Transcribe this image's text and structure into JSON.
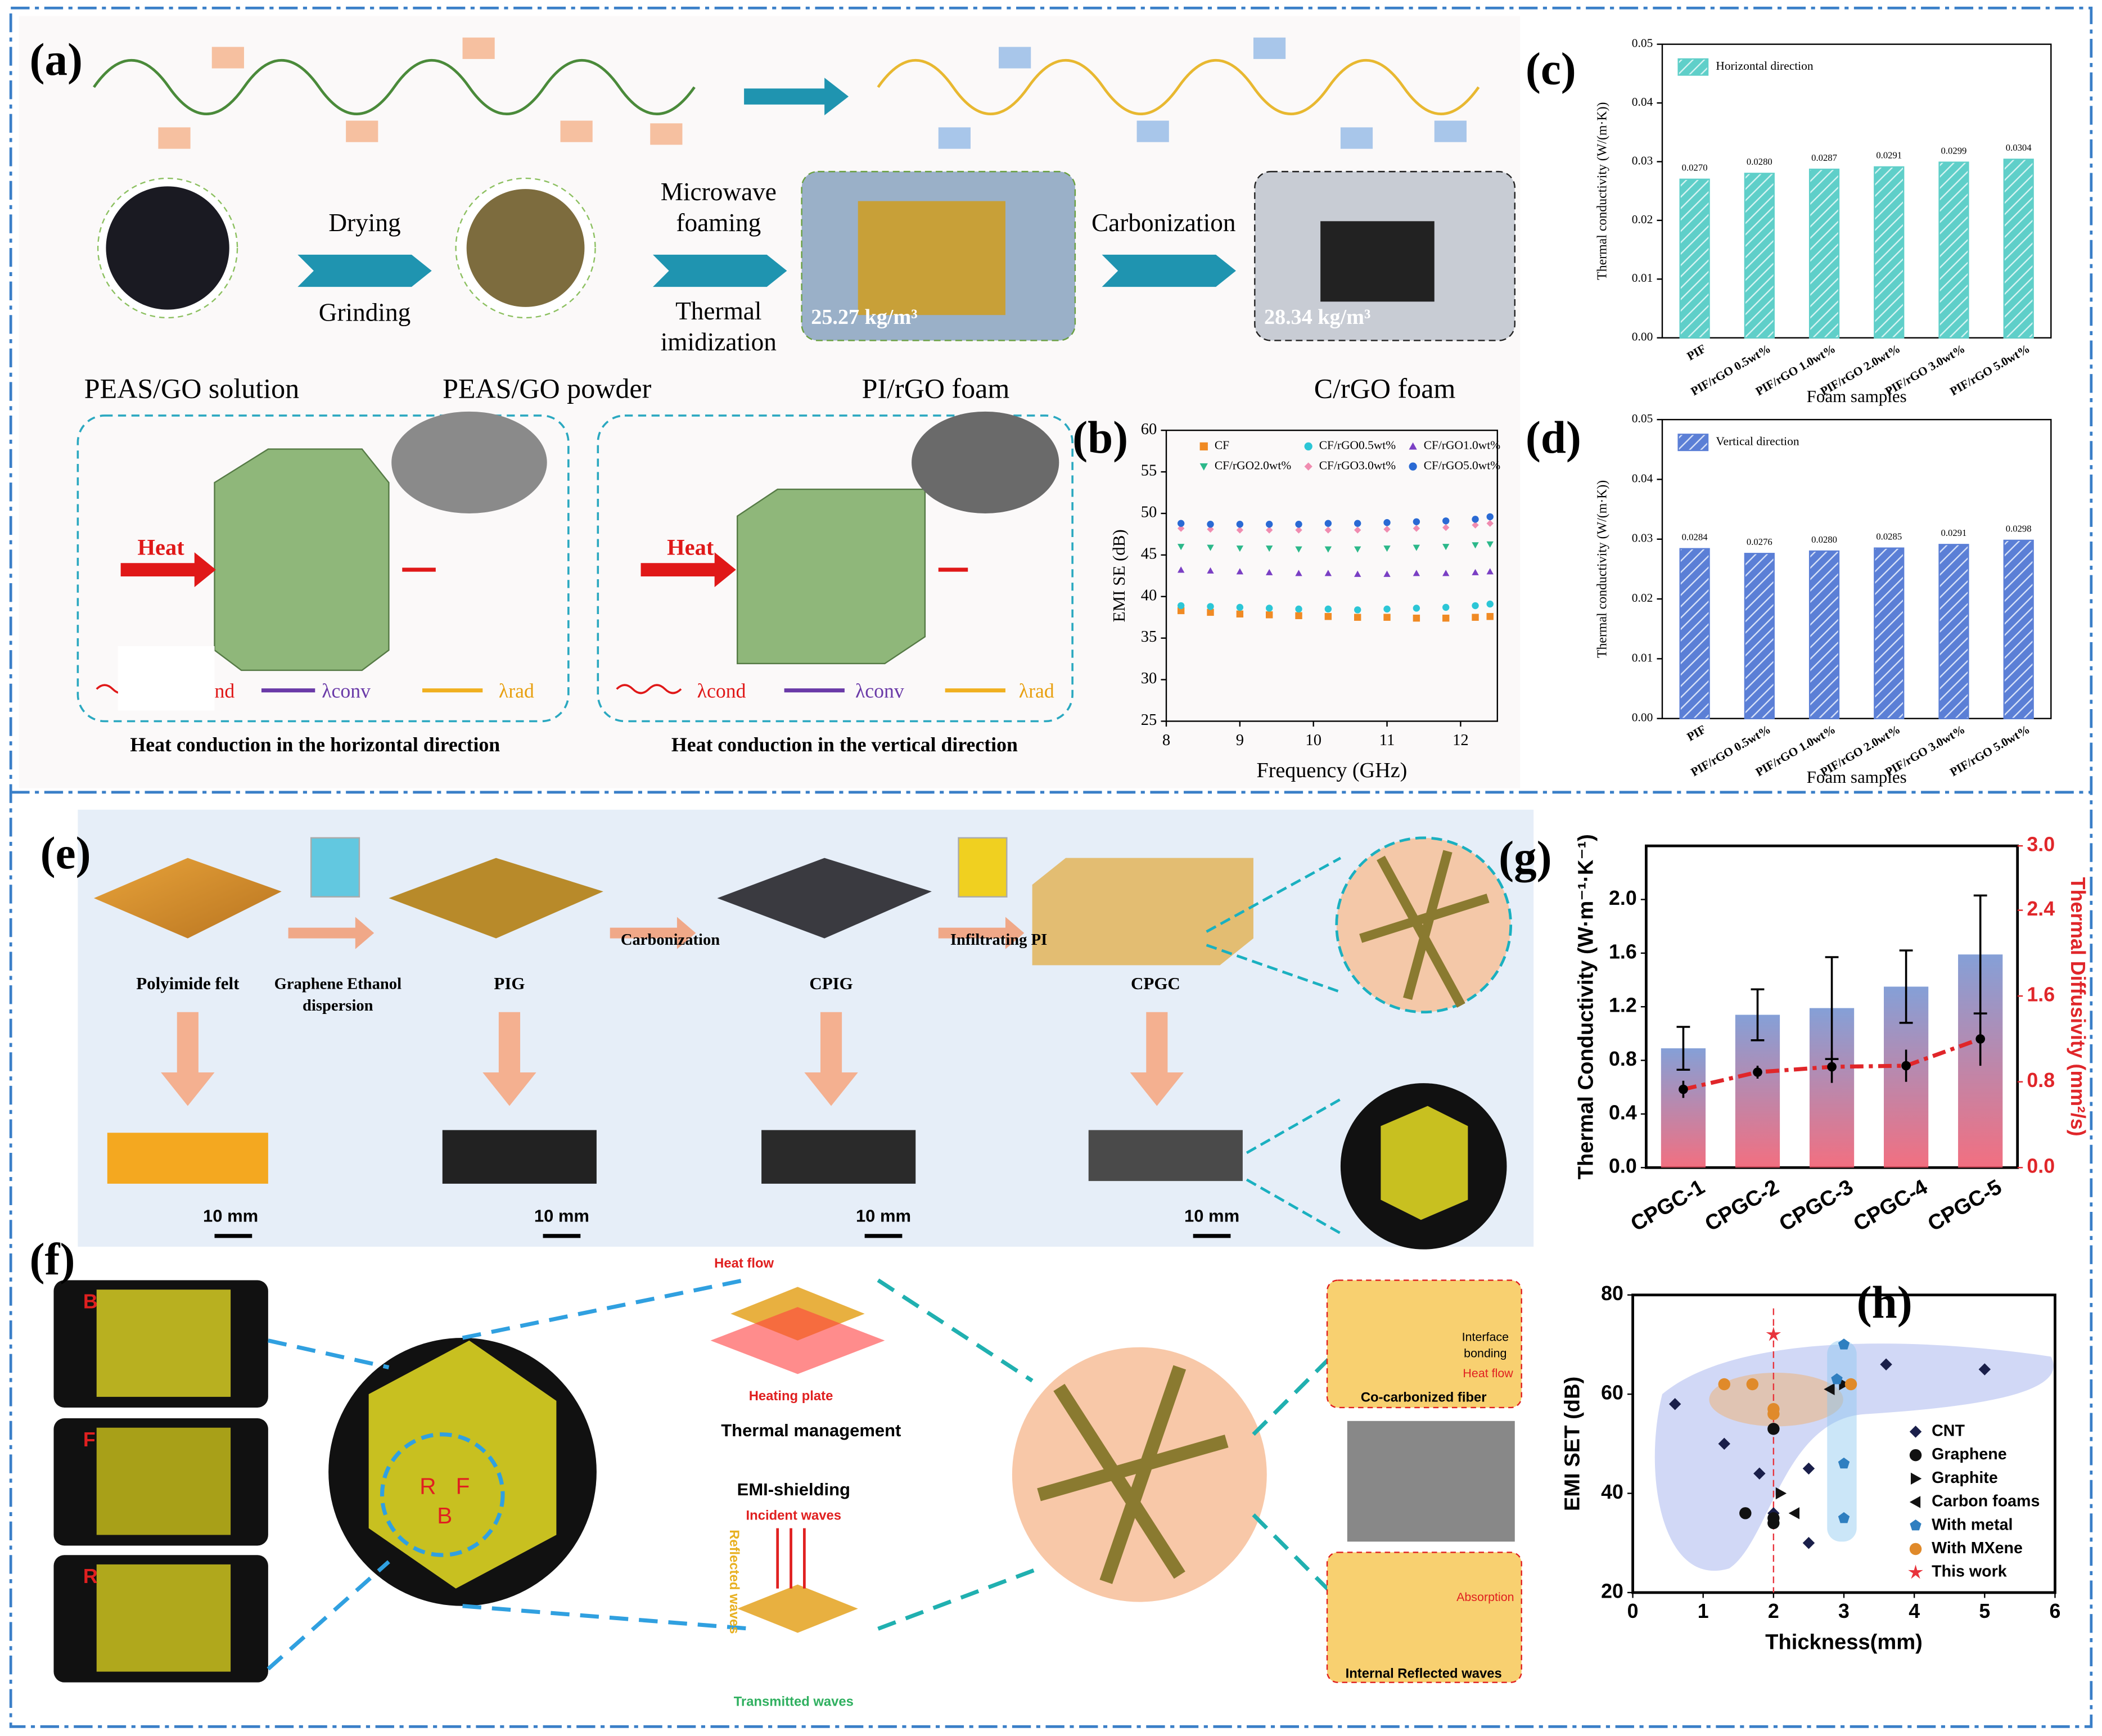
{
  "panel_labels": [
    "(a)",
    "(b)",
    "(c)",
    "(d)",
    "(e)",
    "(f)",
    "(g)",
    "(h)"
  ],
  "panel_a": {
    "arrow_labels": [
      "Drying",
      "Grinding",
      "Microwave",
      "foaming",
      "Thermal",
      "imidization",
      "Carbonization"
    ],
    "densities": [
      "25.27 kg/m³",
      "28.34 kg/m³"
    ],
    "samples": [
      "PEAS/GO solution",
      "PEAS/GO powder",
      "PI/rGO foam",
      "C/rGO foam"
    ],
    "heat": [
      "Heat",
      "Heat"
    ],
    "legend_left": [
      "nd",
      "λconv",
      "λrad"
    ],
    "legend_right": [
      "λcond",
      "λconv",
      "λrad"
    ],
    "captions": [
      "Heat conduction in the horizontal direction",
      "Heat conduction in the vertical direction"
    ]
  },
  "panel_e": {
    "steps": [
      "Polyimide felt",
      "PIG",
      "CPIG",
      "CPGC"
    ],
    "arrow_labels": [
      "Graphene Ethanol",
      "dispersion",
      "Carbonization",
      "Infiltrating PI"
    ],
    "scale_bars": [
      "10 mm",
      "10 mm",
      "10 mm",
      "10 mm"
    ]
  },
  "panel_f": {
    "slices": [
      "B",
      "F",
      "R"
    ],
    "cube_labels": [
      "R",
      "F",
      "B"
    ],
    "thermal": [
      "Heat flow",
      "Heating plate",
      "Thermal management"
    ],
    "emi": [
      "EMI-shielding",
      "Incident waves",
      "Reflected waves",
      "Transmitted waves"
    ],
    "fiber": [
      "Interface",
      "bonding",
      "Heat flow",
      "Co-carbonized fiber",
      "Absorption",
      "Internal Reflected waves"
    ]
  },
  "chart_data": [
    {
      "type": "scatter",
      "xlabel": "Frequency (GHz)",
      "ylabel": "EMI SE (dB)",
      "xlim": [
        8,
        12.5
      ],
      "xticks": [
        8,
        9,
        10,
        11,
        12
      ],
      "ylim": [
        25,
        60
      ],
      "yticks": [
        25,
        30,
        35,
        40,
        45,
        50,
        55,
        60
      ],
      "x": [
        8.2,
        8.6,
        9.0,
        9.4,
        9.8,
        10.2,
        10.6,
        11.0,
        11.4,
        11.8,
        12.2,
        12.4
      ],
      "series": [
        {
          "name": "CF",
          "color": "#f08a24",
          "marker": "square",
          "values": [
            38.3,
            38.1,
            37.9,
            37.8,
            37.7,
            37.6,
            37.5,
            37.5,
            37.4,
            37.4,
            37.5,
            37.6
          ]
        },
        {
          "name": "CF/rGO0.5wt%",
          "color": "#2cc6d6",
          "marker": "circle",
          "values": [
            38.9,
            38.8,
            38.7,
            38.6,
            38.5,
            38.5,
            38.4,
            38.5,
            38.6,
            38.7,
            38.9,
            39.1
          ]
        },
        {
          "name": "CF/rGO1.0wt%",
          "color": "#7a3fc4",
          "marker": "triangle-up",
          "values": [
            43.2,
            43.1,
            43.0,
            42.9,
            42.8,
            42.8,
            42.7,
            42.7,
            42.8,
            42.8,
            42.9,
            43.0
          ]
        },
        {
          "name": "CF/rGO2.0wt%",
          "color": "#2cb88a",
          "marker": "triangle-down",
          "values": [
            46.0,
            45.9,
            45.8,
            45.8,
            45.7,
            45.7,
            45.7,
            45.8,
            45.9,
            46.0,
            46.2,
            46.3
          ]
        },
        {
          "name": "CF/rGO3.0wt%",
          "color": "#f08cb0",
          "marker": "diamond",
          "values": [
            48.2,
            48.1,
            48.0,
            48.0,
            48.0,
            48.0,
            48.0,
            48.1,
            48.2,
            48.3,
            48.6,
            48.8
          ]
        },
        {
          "name": "CF/rGO5.0wt%",
          "color": "#2a6ad4",
          "marker": "circle",
          "values": [
            48.8,
            48.7,
            48.7,
            48.7,
            48.7,
            48.8,
            48.8,
            48.9,
            49.0,
            49.1,
            49.3,
            49.6
          ]
        }
      ]
    },
    {
      "type": "bar",
      "xlabel": "Foam samples",
      "ylabel": "Thermal conductivity (W/(m·K))",
      "ylim": [
        0,
        0.05
      ],
      "yticks": [
        {
          "value": 0,
          "label": "0.00"
        },
        {
          "value": 0.01,
          "label": "0.01"
        },
        {
          "value": 0.02,
          "label": "0.02"
        },
        {
          "value": 0.03,
          "label": "0.03"
        },
        {
          "value": 0.04,
          "label": "0.04"
        },
        {
          "value": 0.05,
          "label": "0.05"
        }
      ],
      "categories": [
        "PIF",
        "PIF/rGO 0.5wt%",
        "PIF/rGO 1.0wt%",
        "PIF/rGO 2.0wt%",
        "PIF/rGO 3.0wt%",
        "PIF/rGO 5.0wt%"
      ],
      "series": [
        {
          "name": "Horizontal direction",
          "color": "#5fcfc9",
          "values": [
            0.027,
            0.028,
            0.0287,
            0.0291,
            0.0299,
            0.0304
          ],
          "value_labels": [
            "0.0270",
            "0.0280",
            "0.0287",
            "0.0291",
            "0.0299",
            "0.0304"
          ]
        }
      ]
    },
    {
      "type": "bar",
      "xlabel": "Foam samples",
      "ylabel": "Thermal conductivity (W/(m·K))",
      "ylim": [
        0,
        0.05
      ],
      "yticks": [
        {
          "value": 0,
          "label": "0.00"
        },
        {
          "value": 0.01,
          "label": "0.01"
        },
        {
          "value": 0.02,
          "label": "0.02"
        },
        {
          "value": 0.03,
          "label": "0.03"
        },
        {
          "value": 0.04,
          "label": "0.04"
        },
        {
          "value": 0.05,
          "label": "0.05"
        }
      ],
      "categories": [
        "PIF",
        "PIF/rGO 0.5wt%",
        "PIF/rGO 1.0wt%",
        "PIF/rGO 2.0wt%",
        "PIF/rGO 3.0wt%",
        "PIF/rGO 5.0wt%"
      ],
      "series": [
        {
          "name": "Vertical direction",
          "color": "#5b7fd6",
          "values": [
            0.0284,
            0.0276,
            0.028,
            0.0285,
            0.0291,
            0.0298
          ],
          "value_labels": [
            "0.0284",
            "0.0276",
            "0.0280",
            "0.0285",
            "0.0291",
            "0.0298"
          ]
        }
      ]
    },
    {
      "type": "bar",
      "ylabel": "Thermal Conductivity (W·m⁻¹·K⁻¹)",
      "y2label": "Thermal Diffusivity (mm²/s)",
      "ylim": [
        0,
        2.4
      ],
      "yticks": [
        {
          "value": 0,
          "label": "0.0"
        },
        {
          "value": 0.4,
          "label": "0.4"
        },
        {
          "value": 0.8,
          "label": "0.8"
        },
        {
          "value": 1.2,
          "label": "1.2"
        },
        {
          "value": 1.6,
          "label": "1.6"
        },
        {
          "value": 2,
          "label": "2.0"
        }
      ],
      "y2lim": [
        0,
        3
      ],
      "y2ticks": [
        {
          "value": 0,
          "label": "0.0"
        },
        {
          "value": 0.8,
          "label": "0.8"
        },
        {
          "value": 1.6,
          "label": "1.6"
        },
        {
          "value": 2.4,
          "label": "2.4"
        },
        {
          "value": 3,
          "label": "3.0"
        }
      ],
      "categories": [
        "CPGC-1",
        "CPGC-2",
        "CPGC-3",
        "CPGC-4",
        "CPGC-5"
      ],
      "series": [
        {
          "color": "#6f8fd0",
          "values": [
            0.89,
            1.14,
            1.19,
            1.35,
            1.59
          ],
          "errors": [
            0.16,
            0.19,
            0.38,
            0.27,
            0.44
          ]
        },
        {
          "color": "#e0262a",
          "axis": "y2",
          "values": [
            0.73,
            0.89,
            0.94,
            0.95,
            1.2
          ],
          "errors": [
            0.08,
            0.06,
            0.15,
            0.15,
            0.25
          ]
        }
      ]
    },
    {
      "type": "scatter",
      "xlabel": "Thickness(mm)",
      "ylabel": "EMI SET (dB)",
      "xlim": [
        0,
        6
      ],
      "xticks": [
        0,
        1,
        2,
        3,
        4,
        5,
        6
      ],
      "ylim": [
        20,
        80
      ],
      "yticks": [
        20,
        40,
        60,
        80
      ],
      "series": [
        {
          "name": "CNT",
          "color": "#1a1f4a",
          "marker": "diamond",
          "x": [
            0.6,
            1.3,
            1.8,
            2.5,
            2.5,
            3.6,
            5,
            2
          ],
          "values": [
            58,
            50,
            44,
            45,
            30,
            66,
            65,
            36
          ]
        },
        {
          "name": "Graphene",
          "color": "#111111",
          "marker": "circle",
          "x": [
            1.6,
            2,
            2,
            2
          ],
          "values": [
            36,
            35,
            34,
            53
          ]
        },
        {
          "name": "Graphite",
          "color": "#111111",
          "marker": "triangle-right",
          "x": [
            2.1,
            3.0
          ],
          "values": [
            40,
            62
          ]
        },
        {
          "name": "Carbon foams",
          "color": "#111111",
          "marker": "triangle-left",
          "x": [
            2.8,
            2.3
          ],
          "values": [
            61,
            36
          ]
        },
        {
          "name": "With metal",
          "color": "#2f7fc0",
          "marker": "pentagon",
          "x": [
            3.0,
            3.0,
            3.0,
            2.9
          ],
          "values": [
            70,
            46,
            35,
            63
          ]
        },
        {
          "name": "With MXene",
          "color": "#e08a2a",
          "marker": "circle",
          "x": [
            1.3,
            1.7,
            2,
            2,
            3.1
          ],
          "values": [
            62,
            62,
            57,
            56,
            62
          ]
        },
        {
          "name": "This work",
          "color": "#e8343c",
          "marker": "star",
          "x": [
            2
          ],
          "values": [
            72
          ]
        }
      ]
    }
  ]
}
